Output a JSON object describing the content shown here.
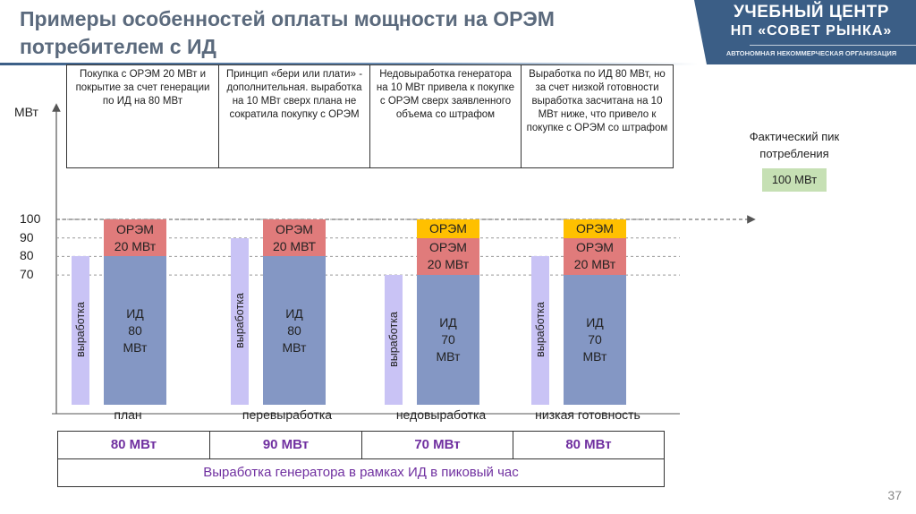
{
  "title_line1": "Примеры особенностей оплаты мощности на ОРЭМ",
  "title_line2": "потребителем с ИД",
  "brand": {
    "line1": "УЧЕБНЫЙ ЦЕНТР",
    "line2": "НП «СОВЕТ РЫНКА»",
    "line3": "АВТОНОМНАЯ НЕКОММЕРЧЕСКАЯ ОРГАНИЗАЦИЯ"
  },
  "descriptions": [
    "Покупка с ОРЭМ 20 МВт и покрытие за счет генерации по ИД на 80 МВт",
    "Принцип «бери или плати» - дополнительная. выработка на 10 МВт сверх плана не сократила покупку с ОРЭМ",
    "Недовыработка генератора на 10 МВт привела к покупке с ОРЭМ сверх заявленного объема со штрафом",
    "Выработка по ИД 80 МВт, но за счет низкой готовности выработка засчитана на 10 МВт ниже, что привело к покупке с ОРЭМ со штрафом"
  ],
  "right_label": "Фактический пик потребления",
  "peak_box": "100 МВт",
  "bottom_values": [
    "80 МВт",
    "90 МВт",
    "70 МВт",
    "80 МВт"
  ],
  "bottom_caption": "Выработка генератора в рамках ИД в пиковый час",
  "page_number": "37",
  "colors": {
    "id_bar": "#8497c4",
    "orem_bar": "#e07b7b",
    "penalty_bar": "#ffc000",
    "generation_bar": "#c9c3f5",
    "peak_box": "#c6e0b4",
    "bottom_text": "#7030a0",
    "brand": "#3b5e86"
  },
  "chart_data": {
    "type": "bar",
    "ylabel": "МВт",
    "yticks": [
      70,
      80,
      90,
      100
    ],
    "categories": [
      "план",
      "перевыработка",
      "недовыработка",
      "низкая готовность"
    ],
    "generation": {
      "label": "выработка",
      "values": [
        80,
        90,
        70,
        80
      ]
    },
    "stacks": [
      {
        "segments": [
          {
            "label_lines": [
              "ИД",
              "80",
              "МВт"
            ],
            "value": 80,
            "kind": "id"
          },
          {
            "label_lines": [
              "ОРЭМ",
              "20 МВт"
            ],
            "value": 20,
            "kind": "orem"
          }
        ]
      },
      {
        "segments": [
          {
            "label_lines": [
              "ИД",
              "80",
              "МВт"
            ],
            "value": 80,
            "kind": "id"
          },
          {
            "label_lines": [
              "ОРЭМ",
              "20 МВТ"
            ],
            "value": 20,
            "kind": "orem"
          }
        ]
      },
      {
        "segments": [
          {
            "label_lines": [
              "ИД",
              "70",
              "МВт"
            ],
            "value": 70,
            "kind": "id"
          },
          {
            "label_lines": [
              "ОРЭМ",
              "20 МВт"
            ],
            "value": 20,
            "kind": "orem"
          },
          {
            "label_lines": [
              "ОРЭМ"
            ],
            "value": 10,
            "kind": "penalty"
          }
        ]
      },
      {
        "segments": [
          {
            "label_lines": [
              "ИД",
              "70",
              "МВт"
            ],
            "value": 70,
            "kind": "id"
          },
          {
            "label_lines": [
              "ОРЭМ",
              "20 МВт"
            ],
            "value": 20,
            "kind": "orem"
          },
          {
            "label_lines": [
              "ОРЭМ"
            ],
            "value": 10,
            "kind": "penalty"
          }
        ]
      }
    ],
    "peak_line_value": 100
  }
}
